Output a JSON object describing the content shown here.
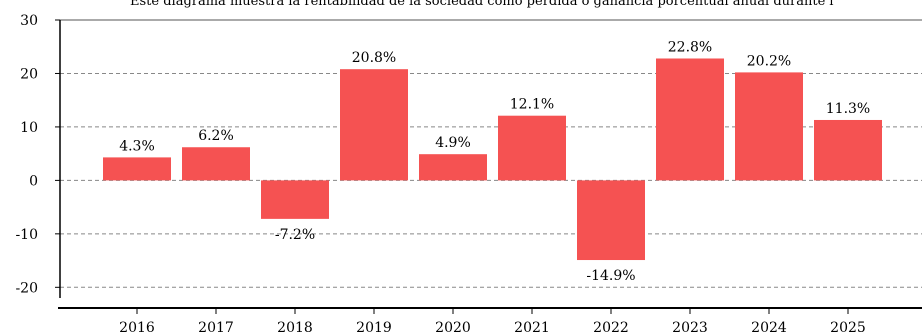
{
  "chart_data": {
    "type": "bar",
    "title": "Este diagrama muestra la rentabilidad de la sociedad como pérdida o ganancia porcentual anual durante l",
    "categories": [
      "2016",
      "2017",
      "2018",
      "2019",
      "2020",
      "2021",
      "2022",
      "2023",
      "2024",
      "2025"
    ],
    "values": [
      4.3,
      6.2,
      -7.2,
      20.8,
      4.9,
      12.1,
      -14.9,
      22.8,
      20.2,
      11.3
    ],
    "data_labels": [
      "4.3%",
      "6.2%",
      "-7.2%",
      "20.8%",
      "4.9%",
      "12.1%",
      "-14.9%",
      "22.8%",
      "20.2%",
      "11.3%"
    ],
    "y_ticks": [
      30,
      20,
      10,
      0,
      -10,
      -20
    ],
    "ylim": [
      -22,
      30
    ],
    "xlabel": "",
    "ylabel": "",
    "grid": true,
    "bar_color": "#f55252",
    "grid_color": "#888888"
  }
}
